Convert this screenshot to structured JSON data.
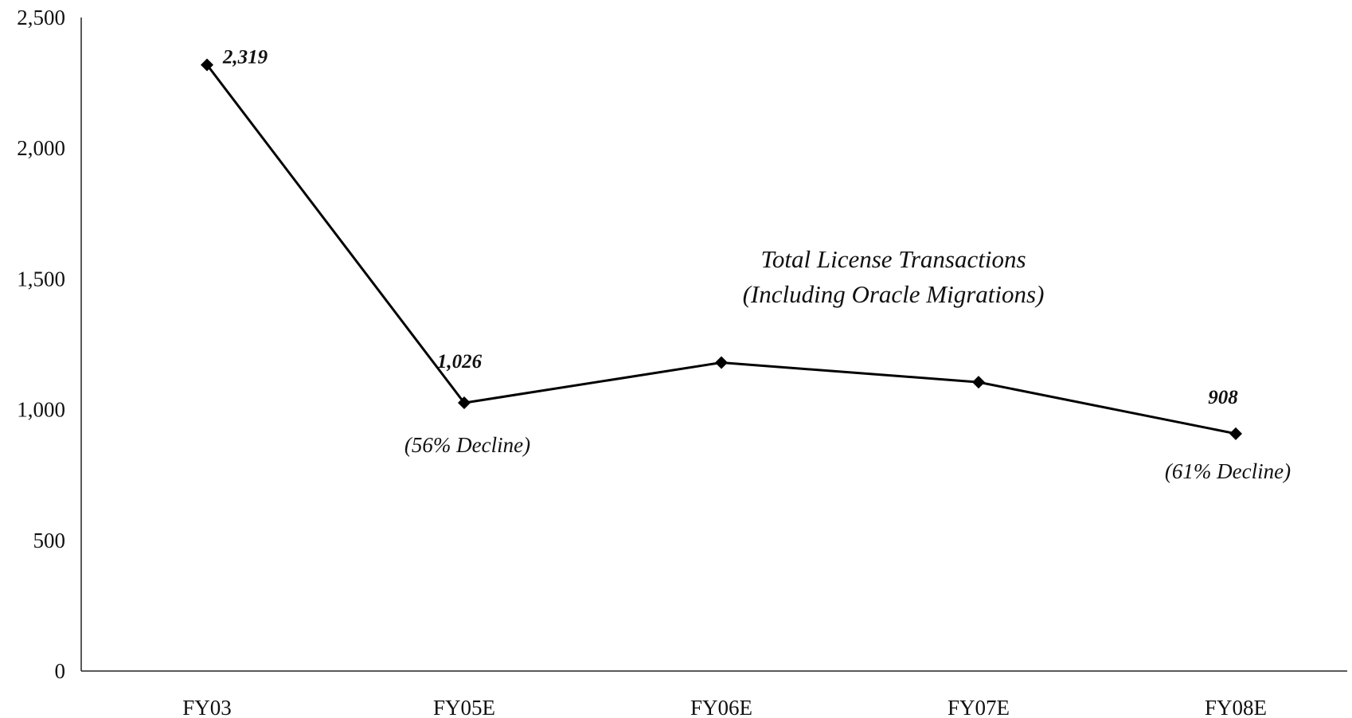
{
  "chart_data": {
    "type": "line",
    "title": "Total License Transactions",
    "subtitle": "(Including Oracle Migrations)",
    "xlabel": "",
    "ylabel": "",
    "categories": [
      "FY03",
      "FY05E",
      "FY06E",
      "FY07E",
      "FY08E"
    ],
    "series": [
      {
        "values": [
          2319,
          1026,
          1180,
          1105,
          908
        ]
      }
    ],
    "ylim": [
      0,
      2500
    ],
    "yticks": [
      0,
      500,
      1000,
      1500,
      2000,
      2500
    ],
    "ytick_labels": [
      "0",
      "500",
      "1,000",
      "1,500",
      "2,000",
      "2,500"
    ],
    "data_labels": [
      {
        "index": 0,
        "text": "2,319"
      },
      {
        "index": 1,
        "text": "1,026"
      },
      {
        "index": 4,
        "text": "908"
      }
    ],
    "annotations": [
      {
        "index": 1,
        "text": "(56% Decline)"
      },
      {
        "index": 4,
        "text": "(61% Decline)"
      }
    ],
    "grid": false,
    "legend": "none",
    "line_color": "#000000",
    "marker": "diamond"
  }
}
